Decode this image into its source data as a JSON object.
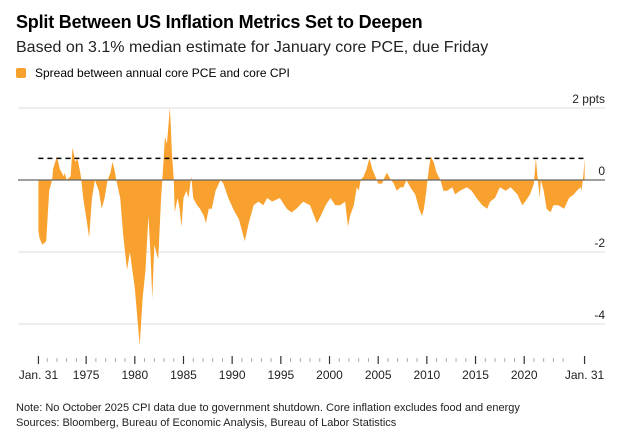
{
  "title": "Split Between US Inflation Metrics Set to Deepen",
  "subtitle": "Based on 3.1% median estimate for January core PCE, due Friday",
  "legend": [
    {
      "label": "Spread between annual core PCE and core CPI",
      "color": "#F9A12E"
    }
  ],
  "note": "Note: No October 2025 CPI data due to government shutdown. Core inflation excludes food and energy",
  "sources": "Sources: Bloomberg, Bureau of Economic Analysis, Bureau of Labor Statistics",
  "chart_data": {
    "type": "area",
    "title": "Split Between US Inflation Metrics Set to Deepen",
    "ylabel_unit": "ppts",
    "ylim": [
      -4.7,
      2
    ],
    "xlim": [
      1968,
      2028.3
    ],
    "grid": true,
    "yticks": [
      {
        "value": 2,
        "label": "2 ppts"
      },
      {
        "value": 0,
        "label": "0"
      },
      {
        "value": -2,
        "label": "-2"
      },
      {
        "value": -4,
        "label": "-4"
      }
    ],
    "xticks": [
      {
        "value": 1970.1,
        "label": "Jan. 31"
      },
      {
        "value": 1975,
        "label": "1975"
      },
      {
        "value": 1980,
        "label": "1980"
      },
      {
        "value": 1985,
        "label": "1985"
      },
      {
        "value": 1990,
        "label": "1990"
      },
      {
        "value": 1995,
        "label": "1995"
      },
      {
        "value": 2000,
        "label": "2000"
      },
      {
        "value": 2005,
        "label": "2005"
      },
      {
        "value": 2010,
        "label": "2010"
      },
      {
        "value": 2015,
        "label": "2015"
      },
      {
        "value": 2020,
        "label": "2020"
      },
      {
        "value": 2026.2,
        "label": "Jan. 31"
      }
    ],
    "reference_line": {
      "value": 0.6,
      "style": "dashed",
      "color": "#000000",
      "x_range": [
        1970.1,
        2026.2
      ]
    },
    "series": [
      {
        "name": "Spread between annual core PCE and core CPI",
        "color": "#F9A12E",
        "x": [
          1970.1,
          1970.2,
          1970.5,
          1970.9,
          1971.2,
          1971.5,
          1971.6,
          1972.0,
          1972.3,
          1972.7,
          1972.8,
          1973.0,
          1973.4,
          1973.6,
          1973.9,
          1974.1,
          1974.4,
          1974.5,
          1974.7,
          1975.1,
          1975.3,
          1975.6,
          1975.9,
          1976.3,
          1976.6,
          1976.9,
          1977.2,
          1977.5,
          1977.7,
          1977.9,
          1978.1,
          1978.5,
          1978.8,
          1979.2,
          1979.5,
          1980.0,
          1980.5,
          1980.8,
          1981.1,
          1981.4,
          1981.6,
          1981.8,
          1982.0,
          1982.3,
          1982.4,
          1982.7,
          1982.9,
          1983.1,
          1983.3,
          1983.6,
          1983.7,
          1983.8,
          1984.0,
          1984.1,
          1984.4,
          1984.6,
          1984.8,
          1985.0,
          1985.3,
          1985.5,
          1985.8,
          1986.0,
          1986.4,
          1986.7,
          1987.1,
          1987.3,
          1987.6,
          1987.9,
          1988.3,
          1988.8,
          1989.1,
          1989.6,
          1990.1,
          1990.7,
          1991.3,
          1991.7,
          1992.2,
          1992.7,
          1993.2,
          1993.6,
          1994.1,
          1994.9,
          1995.6,
          1996.1,
          1996.6,
          1997.3,
          1998.0,
          1998.7,
          1999.1,
          1999.6,
          2000.1,
          2000.6,
          2001.1,
          2001.6,
          2001.9,
          2002.1,
          2002.5,
          2002.8,
          2003.0,
          2003.2,
          2003.5,
          2003.8,
          2004.1,
          2004.4,
          2004.7,
          2005.0,
          2005.4,
          2005.7,
          2005.9,
          2006.2,
          2006.6,
          2006.9,
          2007.3,
          2007.6,
          2007.9,
          2008.3,
          2008.8,
          2009.2,
          2009.5,
          2009.7,
          2009.9,
          2010.2,
          2010.4,
          2010.7,
          2011.0,
          2011.4,
          2011.7,
          2012.1,
          2012.6,
          2012.9,
          2013.4,
          2014.1,
          2014.6,
          2015.1,
          2015.7,
          2016.2,
          2016.5,
          2017.0,
          2017.5,
          2018.1,
          2018.6,
          2019.3,
          2019.8,
          2020.1,
          2020.6,
          2021.0,
          2021.2,
          2021.4,
          2021.6,
          2021.7,
          2022.0,
          2022.3,
          2022.7,
          2023.0,
          2023.5,
          2024.1,
          2024.6,
          2025.1,
          2025.4,
          2025.8,
          2025.9,
          2026.1,
          2026.2
        ],
        "values": [
          -1.4,
          -1.6,
          -1.8,
          -1.7,
          -0.3,
          0,
          0.3,
          0.65,
          0.3,
          0.1,
          0.2,
          0,
          0.1,
          0.9,
          0.5,
          0.6,
          0.2,
          0,
          -0.5,
          -1.2,
          -1.6,
          -0.5,
          0,
          -0.3,
          -0.8,
          -0.5,
          0,
          0.2,
          0.5,
          0.3,
          0,
          -0.5,
          -1.5,
          -2.5,
          -2.0,
          -3.0,
          -4.6,
          -3.3,
          -2.5,
          -1.0,
          -2.0,
          -3.3,
          -1.8,
          -2.1,
          -2.2,
          -0.5,
          0.3,
          1.2,
          1.0,
          2.0,
          1.5,
          0.8,
          0,
          -0.9,
          -0.5,
          -0.8,
          -1.3,
          -0.5,
          -0.3,
          -0.5,
          0.1,
          -0.5,
          -0.7,
          -0.8,
          -1.0,
          -1.2,
          -0.8,
          -0.8,
          -0.3,
          0,
          -0.1,
          -0.5,
          -0.8,
          -1.1,
          -1.7,
          -1.2,
          -0.7,
          -0.6,
          -0.7,
          -0.5,
          -0.6,
          -0.5,
          -0.8,
          -0.9,
          -0.8,
          -0.6,
          -0.7,
          -1.2,
          -1.0,
          -0.7,
          -0.5,
          -0.7,
          -0.7,
          -0.6,
          -1.3,
          -1.0,
          -0.7,
          -0.2,
          -0.3,
          0,
          0.1,
          0.3,
          0.6,
          0.3,
          0.1,
          -0.1,
          -0.1,
          0.1,
          0.2,
          0.05,
          -0.1,
          -0.3,
          -0.2,
          -0.2,
          0,
          -0.2,
          -0.4,
          -0.8,
          -1.0,
          -0.8,
          -0.4,
          0.3,
          0.65,
          0.5,
          0.2,
          0,
          -0.3,
          -0.3,
          -0.2,
          -0.4,
          -0.3,
          -0.2,
          -0.3,
          -0.5,
          -0.7,
          -0.8,
          -0.6,
          -0.5,
          -0.2,
          -0.3,
          -0.2,
          -0.4,
          -0.7,
          -0.6,
          -0.4,
          -0.1,
          0.6,
          0,
          -0.5,
          0,
          -0.3,
          -0.8,
          -0.9,
          -0.7,
          -0.7,
          -0.8,
          -0.5,
          -0.4,
          -0.3,
          -0.2,
          -0.3,
          0.2,
          0.6
        ]
      }
    ]
  }
}
